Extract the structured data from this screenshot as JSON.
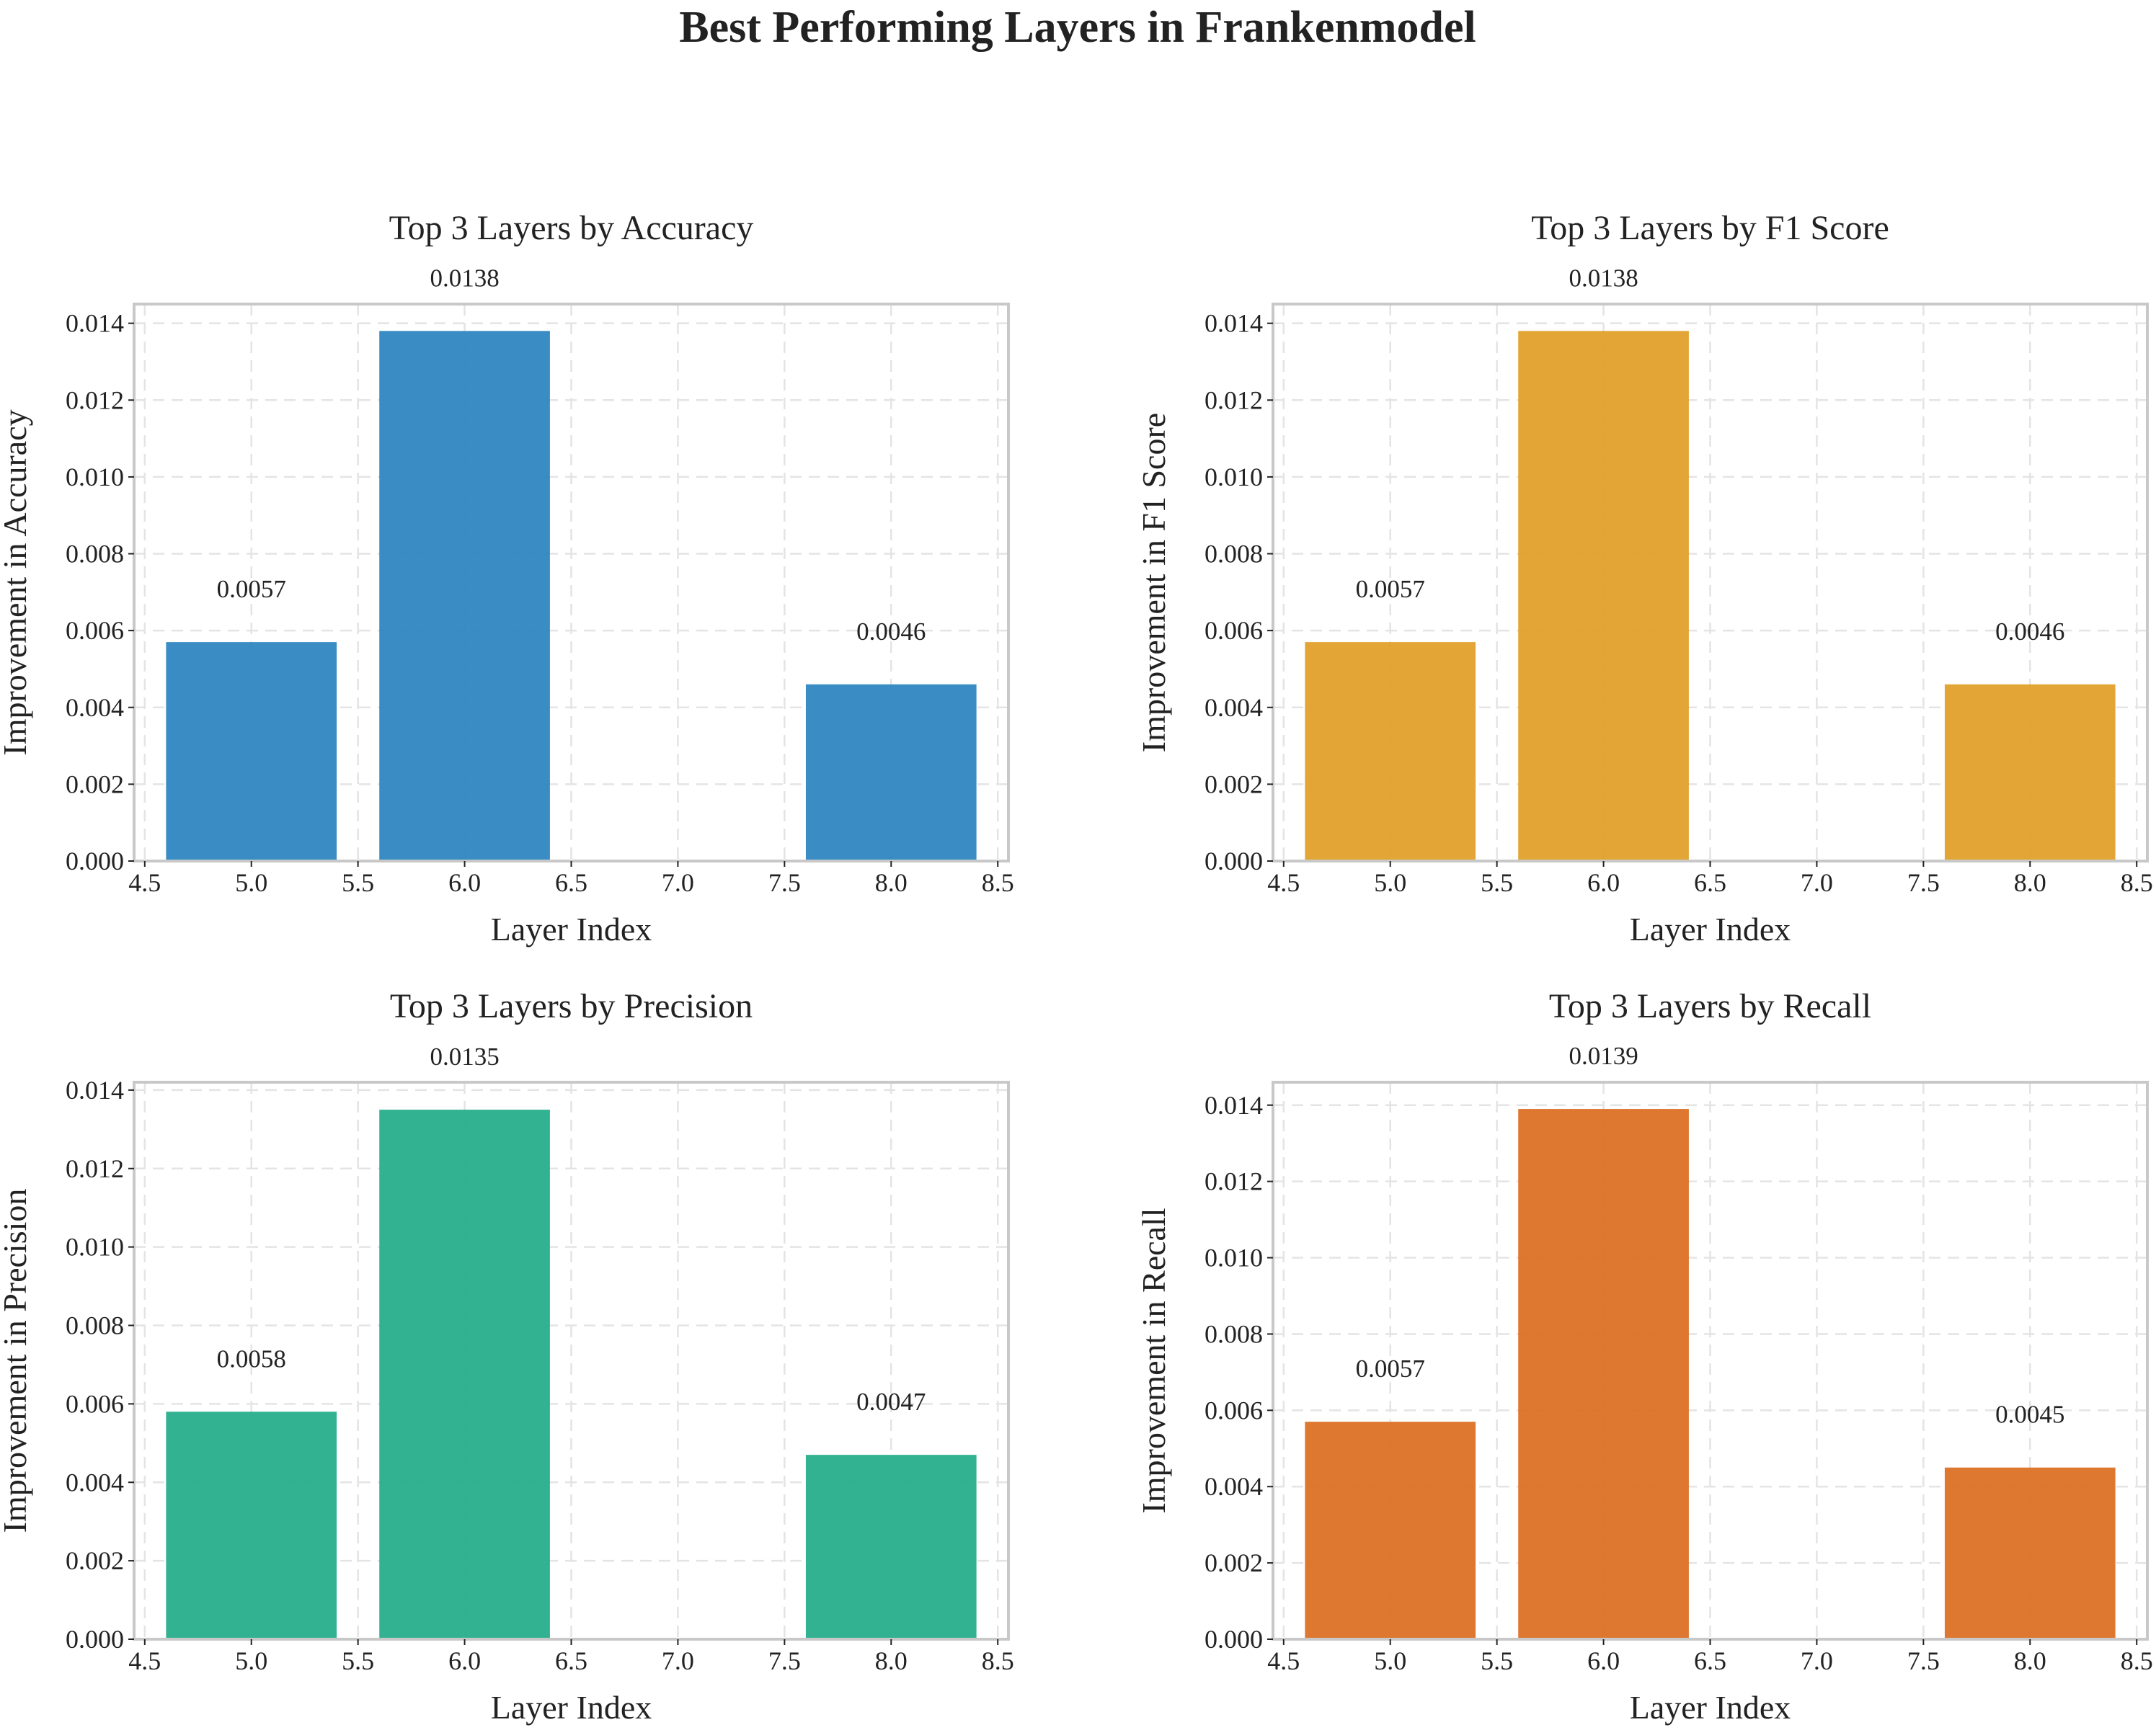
{
  "title": "Best Performing Layers in Frankenmodel",
  "chart_data": [
    {
      "type": "bar",
      "title": "Top 3 Layers by Accuracy",
      "xlabel": "Layer Index",
      "ylabel": "Improvement in Accuracy",
      "x": [
        5,
        6,
        8
      ],
      "values": [
        0.0057,
        0.0138,
        0.0046
      ],
      "value_labels": [
        "0.0057",
        "0.0138",
        "0.0046"
      ],
      "color": "#2e86c1",
      "xlim": [
        4.45,
        8.55
      ],
      "ylim": [
        0,
        0.0145
      ],
      "xticks": [
        "4.5",
        "5.0",
        "5.5",
        "6.0",
        "6.5",
        "7.0",
        "7.5",
        "8.0",
        "8.5"
      ],
      "yticks": [
        "0.000",
        "0.002",
        "0.004",
        "0.006",
        "0.008",
        "0.010",
        "0.012",
        "0.014"
      ],
      "grid": true
    },
    {
      "type": "bar",
      "title": "Top 3 Layers by F1 Score",
      "xlabel": "Layer Index",
      "ylabel": "Improvement in F1 Score",
      "x": [
        5,
        6,
        8
      ],
      "values": [
        0.0057,
        0.0138,
        0.0046
      ],
      "value_labels": [
        "0.0057",
        "0.0138",
        "0.0046"
      ],
      "color": "#e1a02b",
      "xlim": [
        4.45,
        8.55
      ],
      "ylim": [
        0,
        0.0145
      ],
      "xticks": [
        "4.5",
        "5.0",
        "5.5",
        "6.0",
        "6.5",
        "7.0",
        "7.5",
        "8.0",
        "8.5"
      ],
      "yticks": [
        "0.000",
        "0.002",
        "0.004",
        "0.006",
        "0.008",
        "0.010",
        "0.012",
        "0.014"
      ],
      "grid": true
    },
    {
      "type": "bar",
      "title": "Top 3 Layers by Precision",
      "xlabel": "Layer Index",
      "ylabel": "Improvement in Precision",
      "x": [
        5,
        6,
        8
      ],
      "values": [
        0.0058,
        0.0135,
        0.0047
      ],
      "value_labels": [
        "0.0058",
        "0.0135",
        "0.0047"
      ],
      "color": "#27ae8b",
      "xlim": [
        4.45,
        8.55
      ],
      "ylim": [
        0,
        0.0142
      ],
      "xticks": [
        "4.5",
        "5.0",
        "5.5",
        "6.0",
        "6.5",
        "7.0",
        "7.5",
        "8.0",
        "8.5"
      ],
      "yticks": [
        "0.000",
        "0.002",
        "0.004",
        "0.006",
        "0.008",
        "0.010",
        "0.012",
        "0.014"
      ],
      "grid": true
    },
    {
      "type": "bar",
      "title": "Top 3 Layers by Recall",
      "xlabel": "Layer Index",
      "ylabel": "Improvement in Recall",
      "x": [
        5,
        6,
        8
      ],
      "values": [
        0.0057,
        0.0139,
        0.0045
      ],
      "value_labels": [
        "0.0057",
        "0.0139",
        "0.0045"
      ],
      "color": "#dc7024",
      "xlim": [
        4.45,
        8.55
      ],
      "ylim": [
        0,
        0.0146
      ],
      "xticks": [
        "4.5",
        "5.0",
        "5.5",
        "6.0",
        "6.5",
        "7.0",
        "7.5",
        "8.0",
        "8.5"
      ],
      "yticks": [
        "0.000",
        "0.002",
        "0.004",
        "0.006",
        "0.008",
        "0.010",
        "0.012",
        "0.014"
      ],
      "grid": true
    }
  ]
}
